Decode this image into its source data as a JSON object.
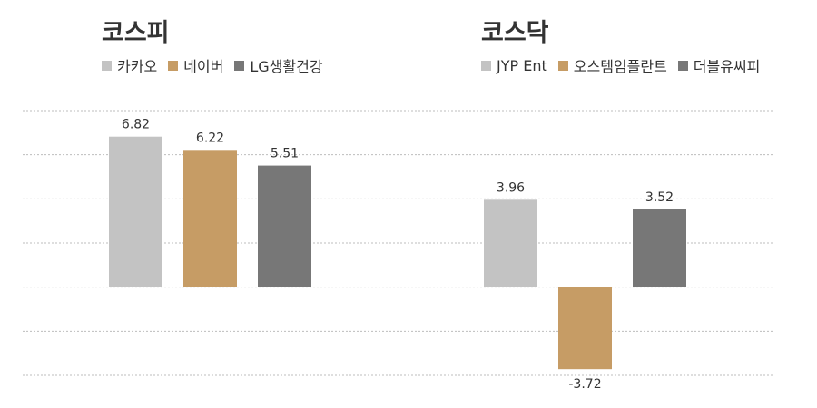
{
  "chart_data": [
    {
      "type": "bar",
      "title": "코스피",
      "categories": [
        "카카오",
        "네이버",
        "LG생활건강"
      ],
      "values": [
        6.82,
        6.22,
        5.51
      ],
      "value_labels": [
        "6.82",
        "6.22",
        "5.51"
      ],
      "colors": [
        "#c3c3c3",
        "#c69c65",
        "#777777"
      ],
      "ylim": [
        -4,
        8
      ],
      "grid": true,
      "legend": "top-left"
    },
    {
      "type": "bar",
      "title": "코스닥",
      "categories": [
        "JYP Ent",
        "오스템임플란트",
        "더블유씨피"
      ],
      "values": [
        3.96,
        -3.72,
        3.52
      ],
      "value_labels": [
        "3.96",
        "-3.72",
        "3.52"
      ],
      "colors": [
        "#c3c3c3",
        "#c69c65",
        "#777777"
      ],
      "ylim": [
        -4,
        8
      ],
      "grid": true,
      "legend": "top-left"
    }
  ]
}
